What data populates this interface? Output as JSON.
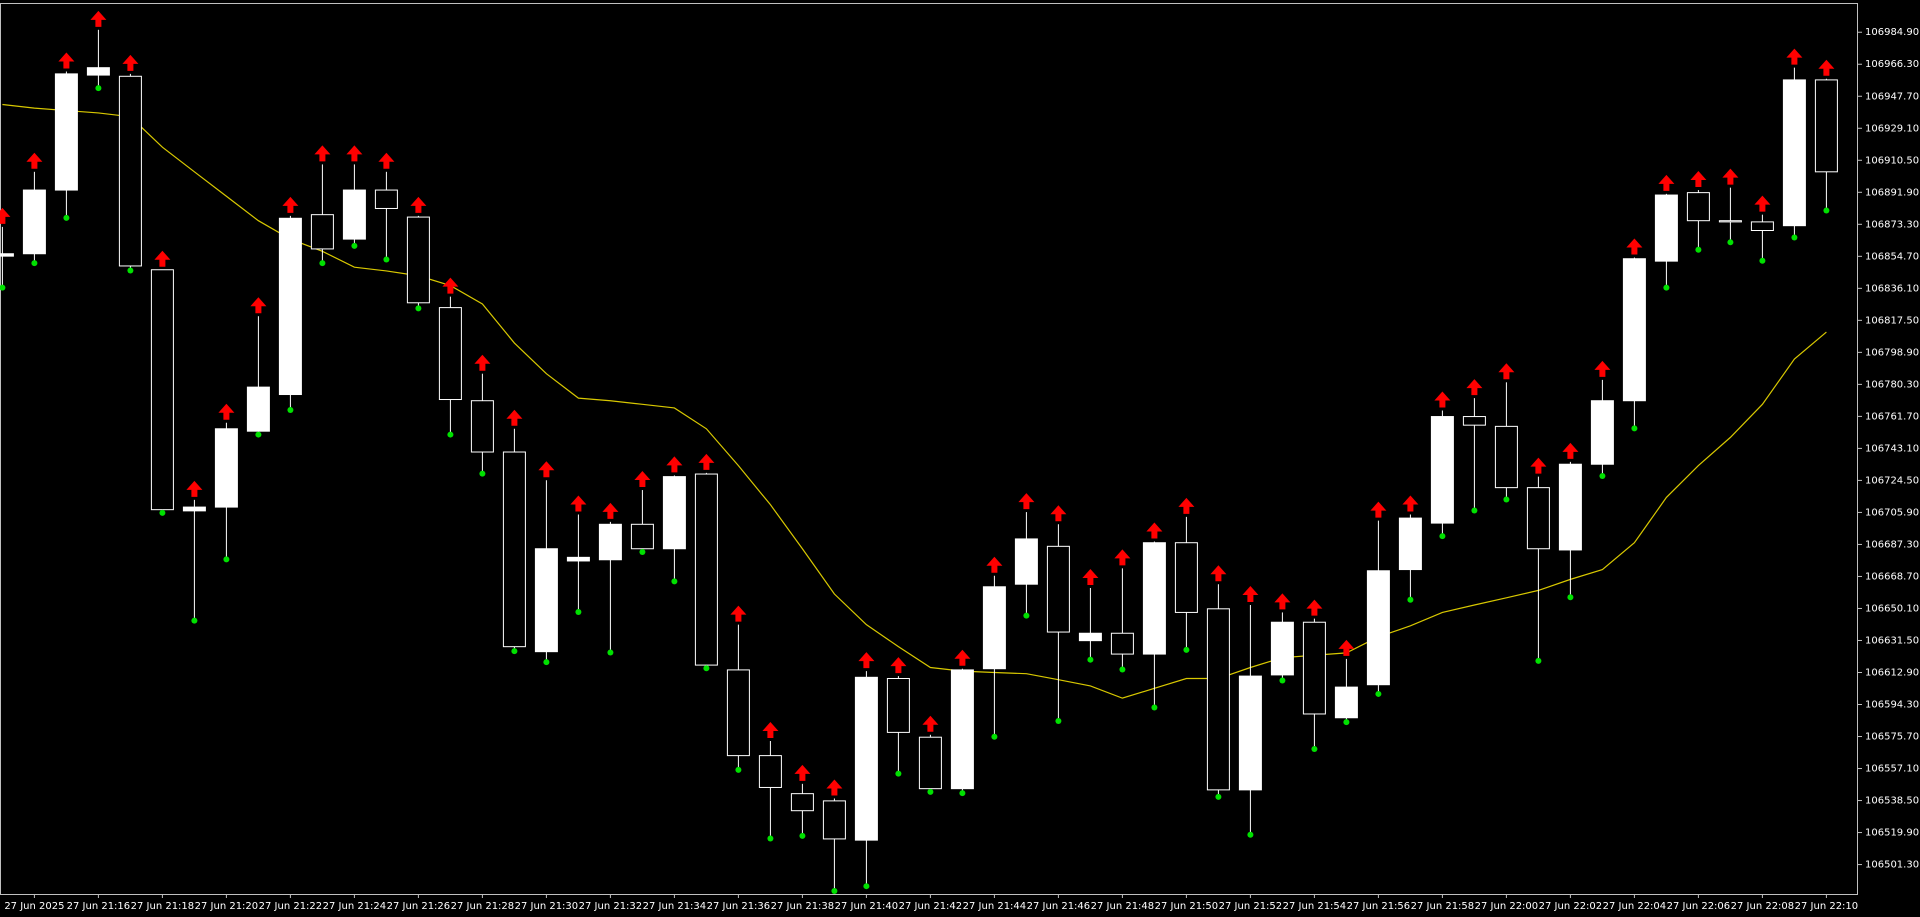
{
  "chart_data": {
    "type": "candlestick",
    "categories": [
      null,
      "27 Jun 2025",
      null,
      "27 Jun 21:16",
      null,
      "27 Jun 21:18",
      null,
      "27 Jun 21:20",
      null,
      "27 Jun 21:22",
      null,
      "27 Jun 21:24",
      null,
      "27 Jun 21:26",
      null,
      "27 Jun 21:28",
      null,
      "27 Jun 21:30",
      null,
      "27 Jun 21:32",
      null,
      "27 Jun 21:34",
      null,
      "27 Jun 21:36",
      null,
      "27 Jun 21:38",
      null,
      "27 Jun 21:40",
      null,
      "27 Jun 21:42",
      null,
      "27 Jun 21:44",
      null,
      "27 Jun 21:46",
      null,
      "27 Jun 21:48",
      null,
      "27 Jun 21:50",
      null,
      "27 Jun 21:52",
      null,
      "27 Jun 21:54",
      null,
      "27 Jun 21:56",
      null,
      "27 Jun 21:58",
      null,
      "27 Jun 22:00",
      null,
      "27 Jun 22:02",
      null,
      "27 Jun 22:04",
      null,
      "27 Jun 22:06",
      null,
      "27 Jun 22:08",
      null,
      "27 Jun 22:10"
    ],
    "open": [
      106854.8,
      106856.2,
      106893.2,
      106960.0,
      106959.3,
      106846.9,
      106706.8,
      106709.0,
      106753.1,
      106774.4,
      106878.9,
      106864.7,
      106893.2,
      106877.5,
      106824.9,
      106770.8,
      106741.0,
      106625.0,
      106677.7,
      106678.4,
      106699.0,
      106684.8,
      106728.2,
      106614.4,
      106564.6,
      106542.5,
      106538.3,
      106515.5,
      106609.4,
      106575.3,
      106545.4,
      106615.1,
      106664.2,
      106686.2,
      106631.4,
      106635.7,
      106623.6,
      106688.3,
      106649.9,
      106544.7,
      106611.5,
      106642.1,
      106586.6,
      106605.8,
      106672.7,
      106699.7,
      106761.6,
      106755.9,
      106720.3,
      106684.1,
      106733.9,
      106770.8,
      106851.9,
      106891.7,
      106875.4,
      106874.7,
      106872.5,
      106957.2
    ],
    "high": [
      106871.8,
      106903.8,
      106962.1,
      106986.3,
      106960.7,
      106846.9,
      106713.2,
      106758.0,
      106819.9,
      106878.2,
      106908.1,
      106908.1,
      106903.8,
      106878.2,
      106831.3,
      106786.5,
      106754.5,
      106724.6,
      106704.7,
      106700.4,
      106718.9,
      106727.4,
      106728.9,
      106640.7,
      106573.1,
      106548.2,
      106539.7,
      106613.7,
      106610.8,
      106576.7,
      106615.1,
      106669.1,
      106706.1,
      106699.0,
      106662.0,
      106673.4,
      106689.0,
      106703.3,
      106664.2,
      106652.1,
      106647.8,
      106644.2,
      106620.8,
      106701.1,
      106704.7,
      106765.1,
      106772.3,
      106781.5,
      106726.7,
      106735.3,
      106782.9,
      106854.0,
      106891.0,
      106893.2,
      106894.6,
      106878.9,
      106964.3,
      106957.9
    ],
    "low": [
      106837.7,
      106851.9,
      106878.2,
      106953.6,
      106847.6,
      106706.8,
      106644.2,
      106679.8,
      106752.3,
      106766.6,
      106851.9,
      106861.9,
      106854.0,
      106825.6,
      106752.3,
      106729.6,
      106626.5,
      106620.1,
      106649.2,
      106625.7,
      106684.1,
      106667.0,
      106616.5,
      106557.5,
      106517.6,
      106519.1,
      106487.1,
      106489.9,
      106555.3,
      106544.7,
      106544.0,
      106576.7,
      106647.1,
      106585.9,
      106621.5,
      106615.8,
      106593.7,
      106627.2,
      106541.8,
      106519.8,
      106609.4,
      106569.6,
      106585.2,
      106601.6,
      106656.3,
      106693.3,
      106708.2,
      106714.6,
      106620.8,
      106657.8,
      106728.2,
      106755.9,
      106837.7,
      106859.7,
      106864.0,
      106853.3,
      106866.8,
      106882.5
    ],
    "close": [
      106856.2,
      106893.2,
      106960.7,
      106964.3,
      106849.1,
      106707.5,
      106709.0,
      106754.5,
      106778.7,
      106876.8,
      106859.0,
      106893.2,
      106882.5,
      106827.7,
      106771.5,
      106741.0,
      106627.9,
      106684.8,
      106679.8,
      106699.0,
      106684.8,
      106726.7,
      106617.2,
      106564.6,
      106546.1,
      106532.6,
      106516.2,
      106610.1,
      106578.1,
      106545.4,
      106614.4,
      106662.7,
      106690.5,
      106636.4,
      106635.7,
      106623.6,
      106688.3,
      106647.8,
      106544.7,
      106610.8,
      106642.1,
      106588.8,
      106604.4,
      106672.0,
      106702.6,
      106761.6,
      106756.6,
      106720.3,
      106684.8,
      106733.9,
      106770.8,
      106853.3,
      106890.3,
      106875.4,
      106874.7,
      106869.7,
      106957.2,
      106903.8
    ],
    "up_color": "#ffffff",
    "down_color": "#000000",
    "wick_color": "#ffffff",
    "high_marker_color": "#ff0000",
    "low_marker_color": "#00e000",
    "overlays": [
      {
        "type": "line",
        "color": "#d8c800",
        "values": [
          106942.9,
          106940.8,
          106939.4,
          106938.0,
          106935.8,
          106918.1,
          106903.8,
          106889.6,
          106875.4,
          106864.7,
          106857.6,
          106848.4,
          106846.2,
          106843.4,
          106837.7,
          106827.0,
          106804.3,
          106786.5,
          106772.3,
          106770.8,
          106768.7,
          106766.6,
          106754.5,
          106733.1,
          106710.4,
          106684.8,
          106658.5,
          106640.7,
          106627.9,
          106615.8,
          106613.7,
          106612.9,
          106612.2,
          106608.7,
          106605.1,
          106598.0,
          106603.7,
          106609.4,
          106609.4,
          106615.8,
          106621.5,
          106622.9,
          106624.3,
          106633.6,
          106640.0,
          106647.8,
          106652.1,
          106656.3,
          106660.6,
          106667.0,
          106672.7,
          106688.3,
          106714.6,
          106733.1,
          106749.5,
          106768.7,
          106795.0,
          106810.7
        ]
      }
    ],
    "ylim": [
      106484.2,
      107001.3
    ],
    "yticks": [
      {
        "value": 106984.9,
        "label": "106984.90"
      },
      {
        "value": 106966.3,
        "label": "106966.30"
      },
      {
        "value": 106947.7,
        "label": "106947.70"
      },
      {
        "value": 106929.1,
        "label": "106929.10"
      },
      {
        "value": 106910.5,
        "label": "106910.50"
      },
      {
        "value": 106891.9,
        "label": "106891.90"
      },
      {
        "value": 106873.3,
        "label": "106873.30"
      },
      {
        "value": 106854.7,
        "label": "106854.70"
      },
      {
        "value": 106836.1,
        "label": "106836.10"
      },
      {
        "value": 106817.5,
        "label": "106817.50"
      },
      {
        "value": 106798.9,
        "label": "106798.90"
      },
      {
        "value": 106780.3,
        "label": "106780.30"
      },
      {
        "value": 106761.7,
        "label": "106761.70"
      },
      {
        "value": 106743.1,
        "label": "106743.10"
      },
      {
        "value": 106724.5,
        "label": "106724.50"
      },
      {
        "value": 106705.9,
        "label": "106705.90"
      },
      {
        "value": 106687.3,
        "label": "106687.30"
      },
      {
        "value": 106668.7,
        "label": "106668.70"
      },
      {
        "value": 106650.1,
        "label": "106650.10"
      },
      {
        "value": 106631.5,
        "label": "106631.50"
      },
      {
        "value": 106612.9,
        "label": "106612.90"
      },
      {
        "value": 106594.3,
        "label": "106594.30"
      },
      {
        "value": 106575.7,
        "label": "106575.70"
      },
      {
        "value": 106557.1,
        "label": "106557.10"
      },
      {
        "value": 106538.5,
        "label": "106538.50"
      },
      {
        "value": 106519.9,
        "label": "106519.90"
      },
      {
        "value": 106501.3,
        "label": "106501.30"
      }
    ]
  }
}
